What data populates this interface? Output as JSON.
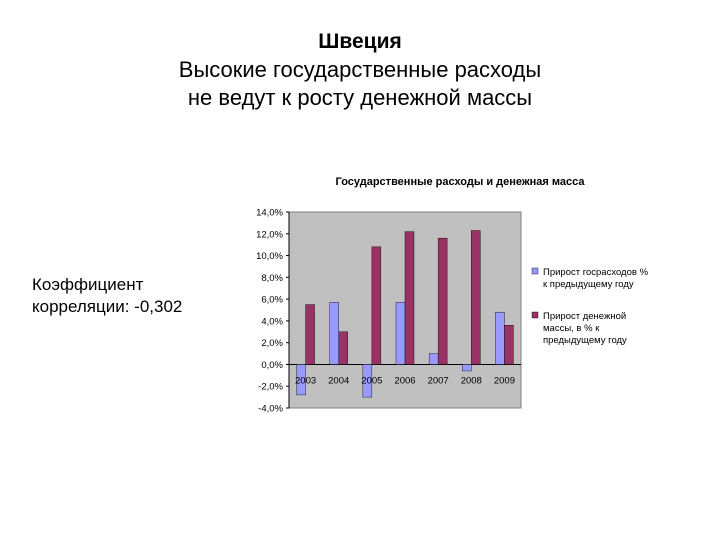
{
  "slide": {
    "title_line1": "Швеция",
    "title_line2": "Высокие государственные расходы",
    "title_line3": "не ведут к росту денежной массы",
    "correlation_line1": "Коэффициент",
    "correlation_line2": "корреляции: -0,302"
  },
  "chart_data": {
    "type": "bar",
    "title": "Государственные расходы и денежная масса",
    "xlabel": "",
    "ylabel": "",
    "categories": [
      "2003",
      "2004",
      "2005",
      "2006",
      "2007",
      "2008",
      "2009"
    ],
    "ylim": [
      -4.0,
      14.0
    ],
    "yticks": [
      14.0,
      12.0,
      10.0,
      8.0,
      6.0,
      4.0,
      2.0,
      0.0,
      -2.0,
      -4.0
    ],
    "ytick_labels": [
      "14,0%",
      "12,0%",
      "10,0%",
      "8,0%",
      "6,0%",
      "4,0%",
      "2,0%",
      "0,0%",
      "-2,0%",
      "-4,0%"
    ],
    "grid": false,
    "legend_position": "right",
    "plot_background": "#c0c0c0",
    "series": [
      {
        "name": "Прирост госрасходов % к предыдущему году",
        "legend_lines": [
          "Прирост госрасходов %",
          "к предыдущему году"
        ],
        "color": "#9999ff",
        "values": [
          -2.8,
          5.7,
          -3.0,
          5.7,
          1.0,
          -0.6,
          4.8
        ]
      },
      {
        "name": "Прирост денежной массы, в % к предыдущему году",
        "legend_lines": [
          "Прирост денежной",
          "массы, в % к",
          "предыдущему году"
        ],
        "color": "#993366",
        "values": [
          5.5,
          3.0,
          10.8,
          12.2,
          11.6,
          12.3,
          3.6
        ]
      }
    ]
  }
}
